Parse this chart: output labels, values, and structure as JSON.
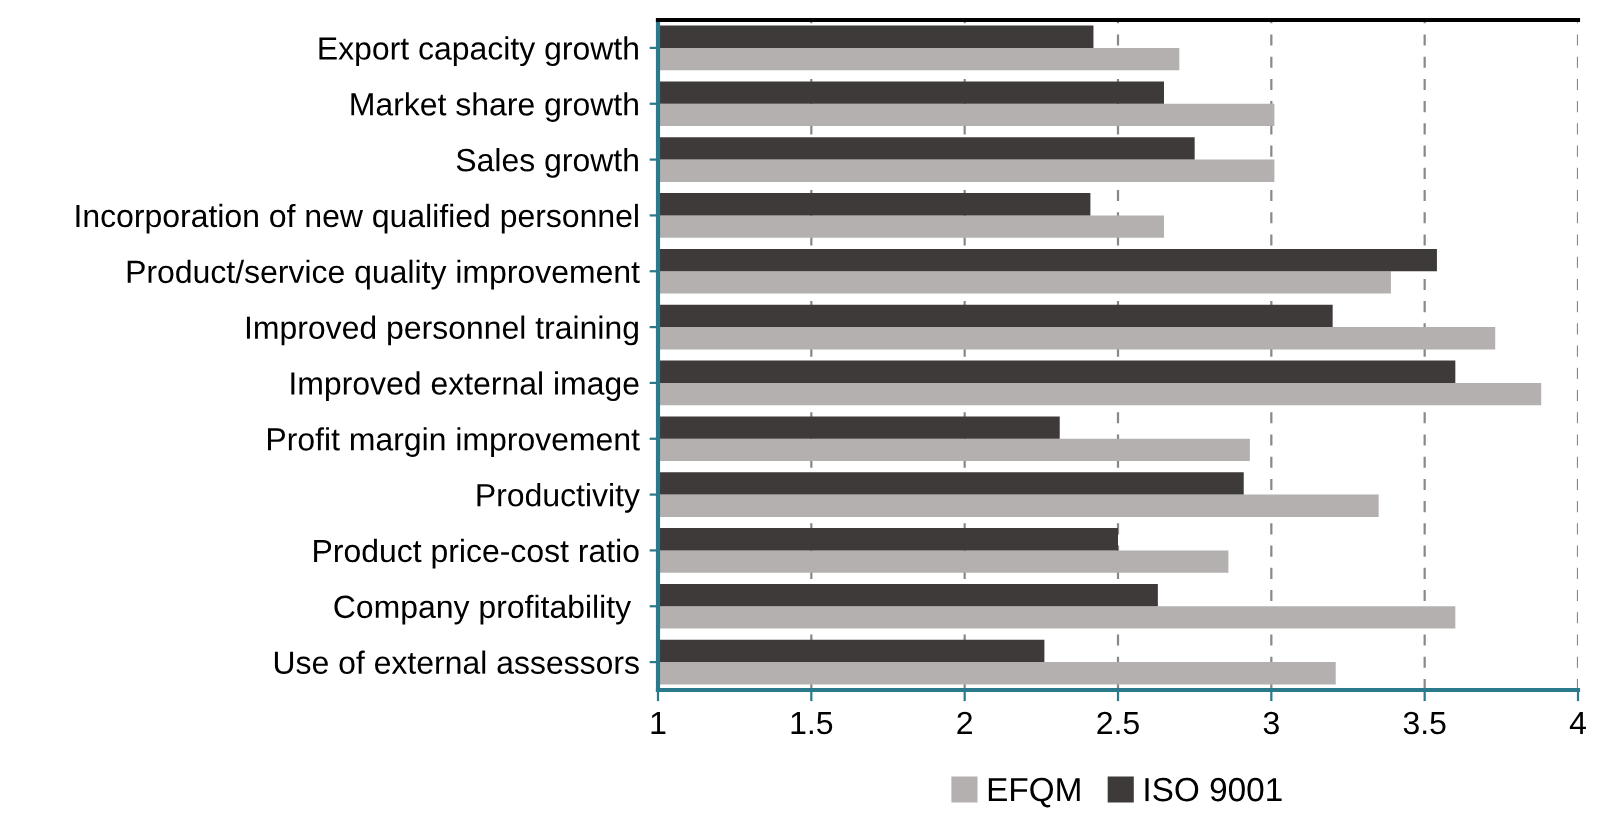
{
  "chart_data": {
    "type": "bar",
    "orientation": "horizontal",
    "categories": [
      "Export capacity growth",
      "Market share growth",
      "Sales growth",
      "Incorporation of new qualified personnel",
      "Product/service quality improvement",
      "Improved personnel training",
      "Improved external image",
      "Profit margin improvement",
      "Productivity",
      "Product price-cost ratio",
      "Company profitability ",
      "Use of external assessors"
    ],
    "series": [
      {
        "name": "EFQM",
        "color": "#b5b0b0",
        "values": [
          2.7,
          3.01,
          3.01,
          2.65,
          3.39,
          3.73,
          3.88,
          2.93,
          3.35,
          2.86,
          3.6,
          3.21
        ]
      },
      {
        "name": "ISO 9001",
        "color": "#3f3a3a",
        "values": [
          2.42,
          2.65,
          2.75,
          2.41,
          3.54,
          3.2,
          3.6,
          2.31,
          2.91,
          2.5,
          2.63,
          2.26
        ]
      }
    ],
    "xlim": [
      1,
      4
    ],
    "xticks": [
      1,
      1.5,
      2,
      2.5,
      3,
      3.5,
      4
    ],
    "grid": "x",
    "legend": "bottom"
  }
}
